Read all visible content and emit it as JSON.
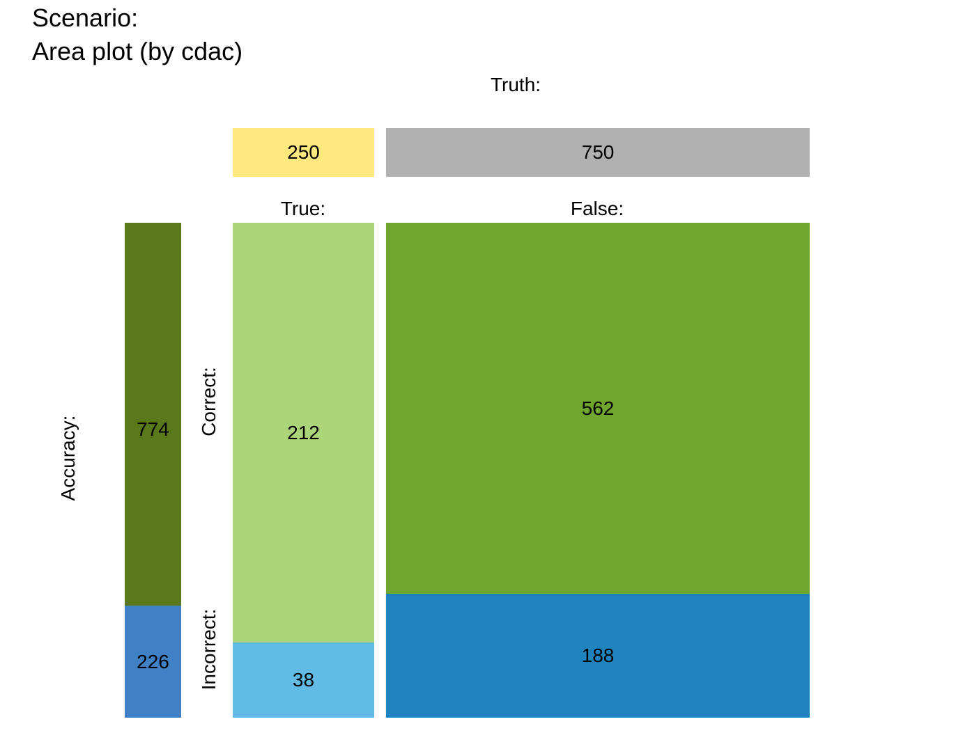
{
  "title": "Scenario:",
  "subtitle": "Area plot (by cdac)",
  "chart_data": {
    "type": "area",
    "title": "Scenario:",
    "subtitle": "Area plot (by cdac)",
    "truth_label": "Truth:",
    "accuracy_label": "Accuracy:",
    "column_labels": [
      "True:",
      "False:"
    ],
    "row_labels": [
      "Correct:",
      "Incorrect:"
    ],
    "truth_totals": [
      250,
      750
    ],
    "accuracy_totals": [
      774,
      226
    ],
    "cells": {
      "true_correct": 212,
      "true_incorrect": 38,
      "false_correct": 562,
      "false_incorrect": 188
    },
    "colors": {
      "truth_true": "#FFE97F",
      "truth_false": "#B1B1B1",
      "accuracy_correct": "#59791A",
      "accuracy_incorrect": "#4080C4",
      "true_correct": "#ACD57A",
      "true_incorrect": "#62BBE5",
      "false_correct": "#70A62E",
      "false_incorrect": "#1F84BD"
    }
  }
}
